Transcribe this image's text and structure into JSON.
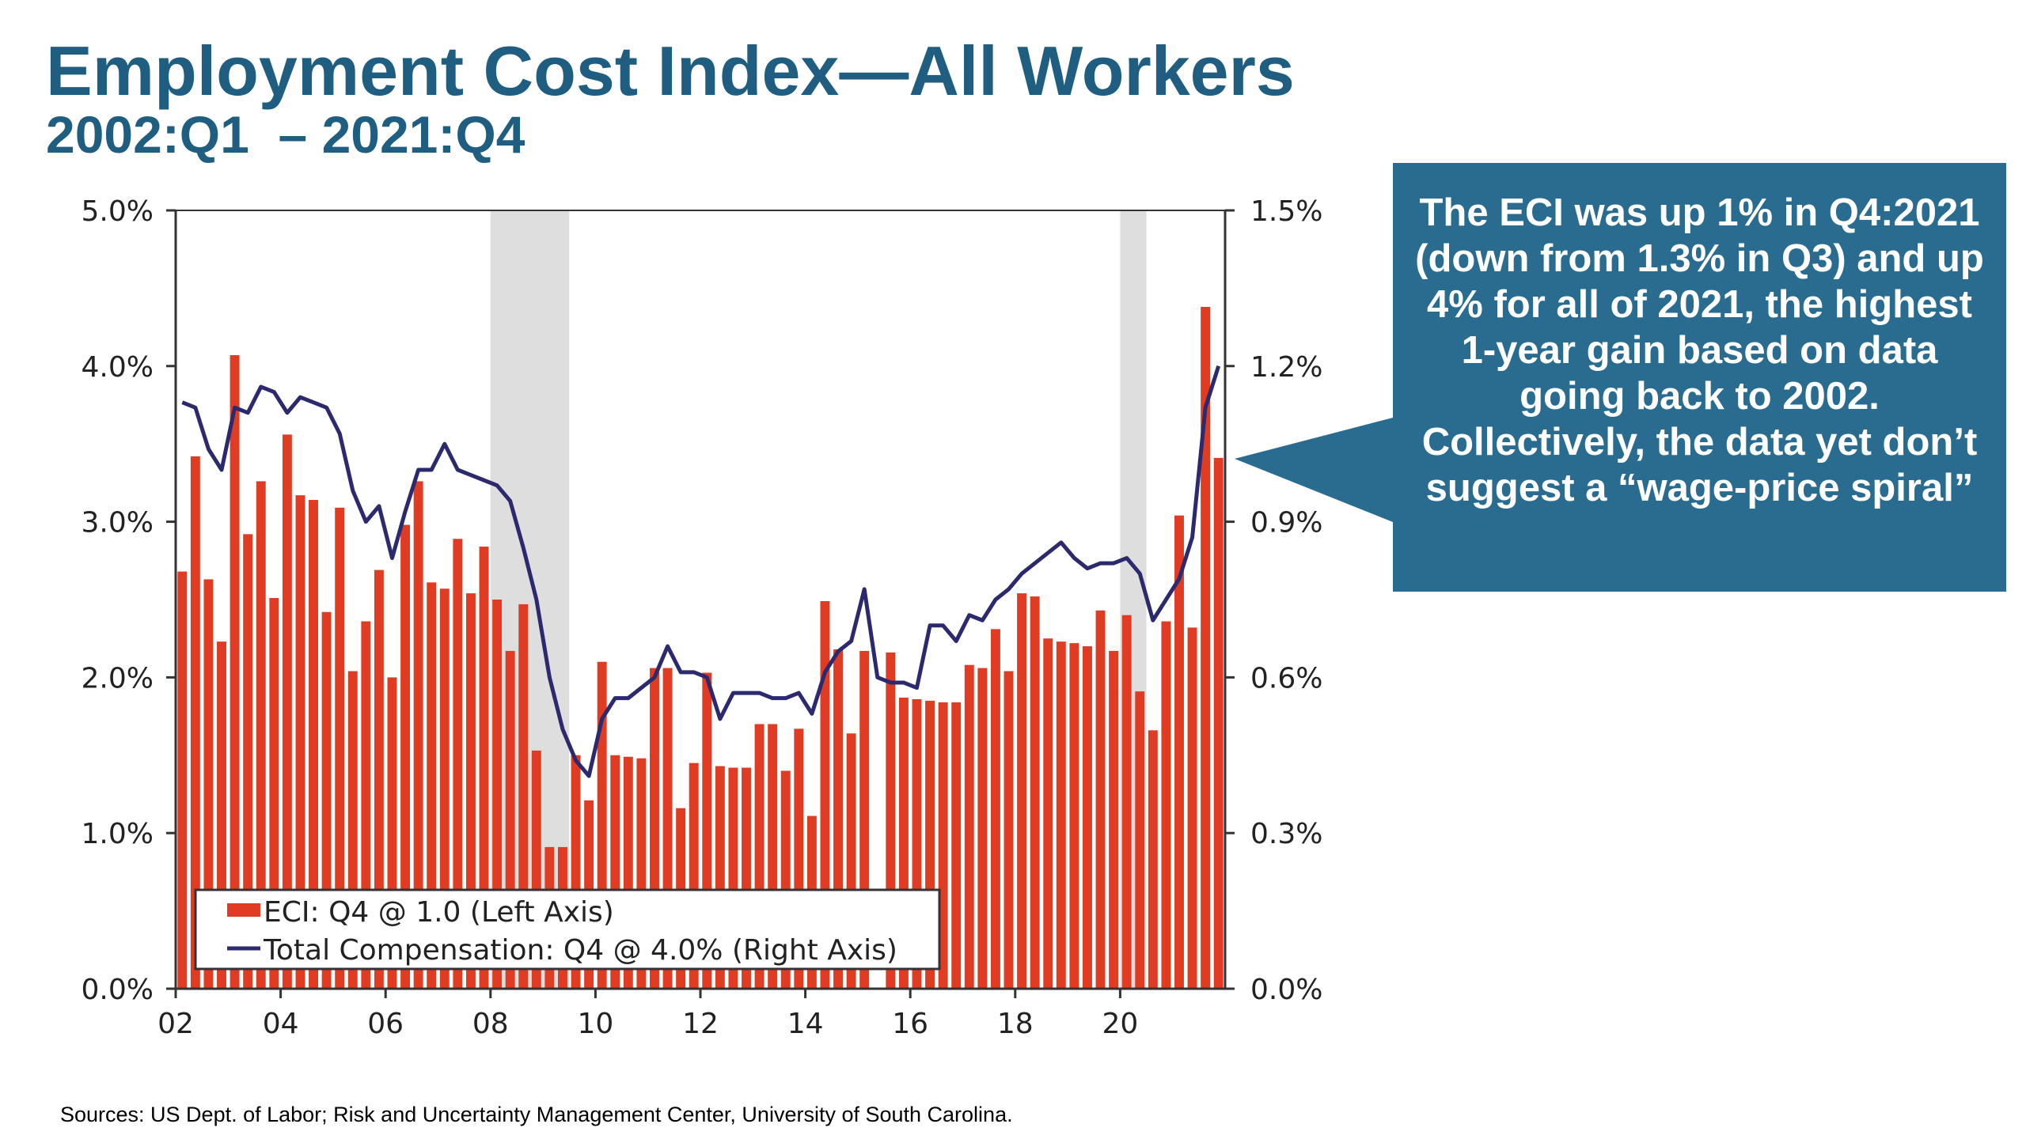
{
  "title": "Employment Cost Index—All Workers",
  "subtitle": "2002:Q1  – 2021:Q4",
  "callout": {
    "text": "The ECI was up 1% in Q4:2021 (down from 1.3% in Q3) and up 4% for all of 2021, the highest 1-year gain based on data going back to 2002.  Collectively, the data yet don’t suggest a “wage-price spiral”",
    "color": "#2a6c8f"
  },
  "source": "Sources: US Dept. of Labor; Risk and Uncertainty Management Center, University of South Carolina.",
  "chart_data": {
    "type": "bar",
    "x_start": 2002.0,
    "x_step": 0.25,
    "xlim": [
      2002,
      2022
    ],
    "x_ticks": [
      2002,
      2004,
      2006,
      2008,
      2010,
      2012,
      2014,
      2016,
      2018,
      2020
    ],
    "x_tick_labels": [
      "02",
      "04",
      "06",
      "08",
      "10",
      "12",
      "14",
      "16",
      "18",
      "20"
    ],
    "y_left": {
      "lim": [
        0,
        5
      ],
      "ticks": [
        0,
        1,
        2,
        3,
        4,
        5
      ],
      "tick_labels": [
        "0.0%",
        "1.0%",
        "2.0%",
        "3.0%",
        "4.0%",
        "5.0%"
      ]
    },
    "y_right": {
      "lim": [
        0,
        1.5
      ],
      "ticks": [
        0,
        0.3,
        0.6,
        0.9,
        1.2,
        1.5
      ],
      "tick_labels": [
        "0.0%",
        "0.3%",
        "0.6%",
        "0.9%",
        "1.2%",
        "1.5%"
      ]
    },
    "recessions": [
      [
        2008.0,
        2009.5
      ],
      [
        2020.0,
        2020.5
      ]
    ],
    "series": [
      {
        "name": "ECI: Q4 @ 1.0 (Left Axis)",
        "type": "bar",
        "axis": "left",
        "color": "#e03c24",
        "values": [
          2.68,
          3.42,
          2.63,
          2.23,
          4.07,
          2.92,
          3.26,
          2.51,
          3.56,
          3.17,
          3.14,
          2.42,
          3.09,
          2.04,
          2.36,
          2.69,
          2.0,
          2.98,
          3.26,
          2.61,
          2.57,
          2.89,
          2.54,
          2.84,
          2.5,
          2.17,
          2.47,
          1.53,
          0.91,
          0.91,
          1.5,
          1.21,
          2.1,
          1.5,
          1.49,
          1.48,
          2.06,
          2.06,
          1.16,
          1.45,
          2.03,
          1.43,
          1.42,
          1.42,
          1.7,
          1.7,
          1.4,
          1.67,
          1.11,
          2.49,
          2.18,
          1.64,
          2.17,
          0,
          2.16,
          1.87,
          1.86,
          1.85,
          1.84,
          1.84,
          2.08,
          2.06,
          2.31,
          2.04,
          2.54,
          2.52,
          2.25,
          2.23,
          2.22,
          2.2,
          2.43,
          2.17,
          2.4,
          1.91,
          1.66,
          2.36,
          3.04,
          2.32,
          4.38,
          3.41
        ]
      },
      {
        "name": "Total Compensation: Q4 @ 4.0% (Right Axis)",
        "type": "line",
        "axis": "right",
        "color": "#2c2a6e",
        "points": [
          [
            2002.0,
            1.13
          ],
          [
            2002.25,
            1.12
          ],
          [
            2002.5,
            1.04
          ],
          [
            2002.75,
            1.0
          ],
          [
            2003.0,
            1.12
          ],
          [
            2003.25,
            1.11
          ],
          [
            2003.5,
            1.16
          ],
          [
            2003.75,
            1.15
          ],
          [
            2004.0,
            1.11
          ],
          [
            2004.25,
            1.14
          ],
          [
            2004.5,
            1.13
          ],
          [
            2004.75,
            1.12
          ],
          [
            2005.0,
            1.07
          ],
          [
            2005.25,
            0.96
          ],
          [
            2005.5,
            0.9
          ],
          [
            2005.75,
            0.93
          ],
          [
            2006.0,
            0.83
          ],
          [
            2006.25,
            0.92
          ],
          [
            2006.5,
            1.0
          ],
          [
            2006.75,
            1.0
          ],
          [
            2007.0,
            1.05
          ],
          [
            2007.25,
            1.0
          ],
          [
            2007.5,
            0.99
          ],
          [
            2007.75,
            0.98
          ],
          [
            2008.0,
            0.97
          ],
          [
            2008.25,
            0.94
          ],
          [
            2008.5,
            0.85
          ],
          [
            2008.75,
            0.75
          ],
          [
            2009.0,
            0.6
          ],
          [
            2009.25,
            0.5
          ],
          [
            2009.5,
            0.44
          ],
          [
            2009.75,
            0.41
          ],
          [
            2010.0,
            0.52
          ],
          [
            2010.25,
            0.56
          ],
          [
            2010.5,
            0.56
          ],
          [
            2010.75,
            0.58
          ],
          [
            2011.0,
            0.6
          ],
          [
            2011.25,
            0.66
          ],
          [
            2011.5,
            0.61
          ],
          [
            2011.75,
            0.61
          ],
          [
            2012.0,
            0.6
          ],
          [
            2012.25,
            0.52
          ],
          [
            2012.5,
            0.57
          ],
          [
            2012.75,
            0.57
          ],
          [
            2013.0,
            0.57
          ],
          [
            2013.25,
            0.56
          ],
          [
            2013.5,
            0.56
          ],
          [
            2013.75,
            0.57
          ],
          [
            2014.0,
            0.53
          ],
          [
            2014.25,
            0.61
          ],
          [
            2014.5,
            0.65
          ],
          [
            2014.75,
            0.67
          ],
          [
            2015.0,
            0.77
          ],
          [
            2015.25,
            0.6
          ],
          [
            2015.5,
            0.59
          ],
          [
            2015.75,
            0.59
          ],
          [
            2016.0,
            0.58
          ],
          [
            2016.25,
            0.7
          ],
          [
            2016.5,
            0.7
          ],
          [
            2016.75,
            0.67
          ],
          [
            2017.0,
            0.72
          ],
          [
            2017.25,
            0.71
          ],
          [
            2017.5,
            0.75
          ],
          [
            2017.75,
            0.77
          ],
          [
            2018.0,
            0.8
          ],
          [
            2018.25,
            0.82
          ],
          [
            2018.5,
            0.84
          ],
          [
            2018.75,
            0.86
          ],
          [
            2019.0,
            0.83
          ],
          [
            2019.25,
            0.81
          ],
          [
            2019.5,
            0.82
          ],
          [
            2019.75,
            0.82
          ],
          [
            2020.0,
            0.83
          ],
          [
            2020.25,
            0.8
          ],
          [
            2020.5,
            0.71
          ],
          [
            2020.75,
            0.75
          ],
          [
            2021.0,
            0.79
          ],
          [
            2021.25,
            0.87
          ],
          [
            2021.5,
            1.12
          ],
          [
            2021.75,
            1.2
          ]
        ]
      }
    ],
    "legend": {
      "position": "lower-left",
      "entries": [
        "ECI: Q4 @ 1.0 (Left Axis)",
        "Total Compensation: Q4 @ 4.0% (Right Axis)"
      ]
    }
  }
}
